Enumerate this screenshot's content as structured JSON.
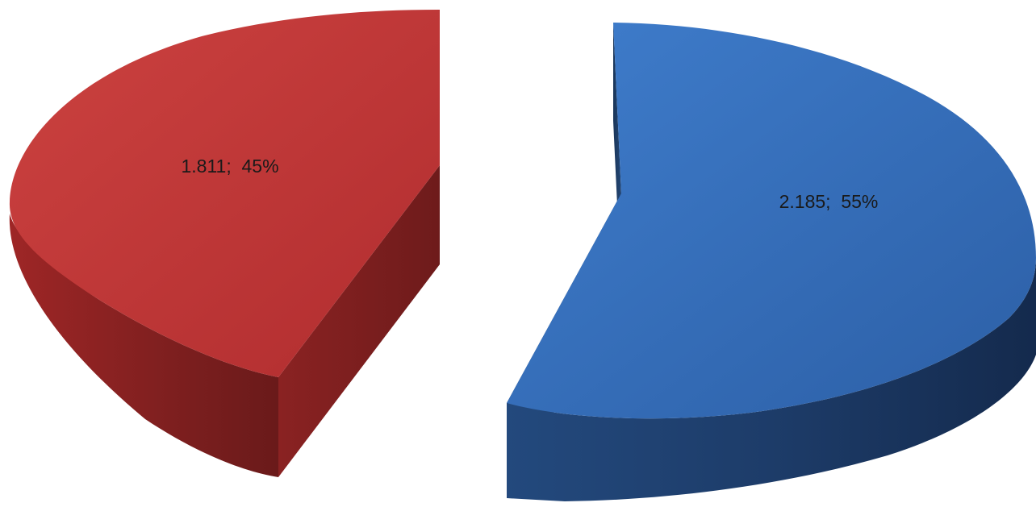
{
  "chart_data": {
    "type": "pie",
    "style": "3d-exploded",
    "title": "",
    "slices": [
      {
        "value": 1.811,
        "percent": 45,
        "label": "1.811;  45%",
        "color": "#c0393b"
      },
      {
        "value": 2.185,
        "percent": 55,
        "label": "2.185;  55%",
        "color": "#3a72bd"
      }
    ],
    "legend": "none"
  }
}
